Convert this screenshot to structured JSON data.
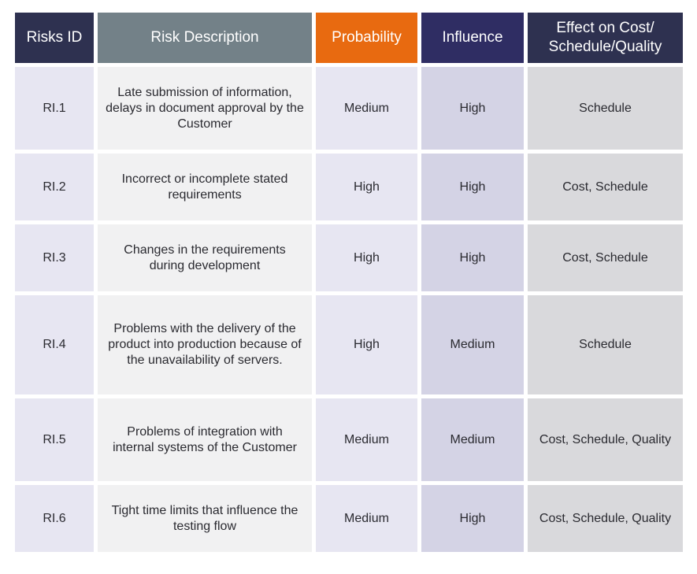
{
  "header": {
    "id": "Risks ID",
    "description": "Risk Description",
    "probability": "Probability",
    "influence": "Influence",
    "effect": "Effect on Cost/ Schedule/Quality"
  },
  "rows": [
    {
      "id": "RI.1",
      "description": "Late submission of information, delays in document approval by the Customer",
      "probability": "Medium",
      "influence": "High",
      "effect": "Schedule"
    },
    {
      "id": "RI.2",
      "description": "Incorrect or incomplete stated requirements",
      "probability": "High",
      "influence": "High",
      "effect": "Cost, Schedule"
    },
    {
      "id": "RI.3",
      "description": "Changes in the requirements during development",
      "probability": "High",
      "influence": "High",
      "effect": "Cost, Schedule"
    },
    {
      "id": "RI.4",
      "description": "Problems with the delivery of the product into production because of the unavailability of servers.",
      "probability": "High",
      "influence": "Medium",
      "effect": "Schedule"
    },
    {
      "id": "RI.5",
      "description": "Problems of integration with internal systems of the Customer",
      "probability": "Medium",
      "influence": "Medium",
      "effect": "Cost, Schedule, Quality"
    },
    {
      "id": "RI.6",
      "description": "Tight time limits that influence the testing flow",
      "probability": "Medium",
      "influence": "High",
      "effect": "Cost, Schedule, Quality"
    }
  ]
}
